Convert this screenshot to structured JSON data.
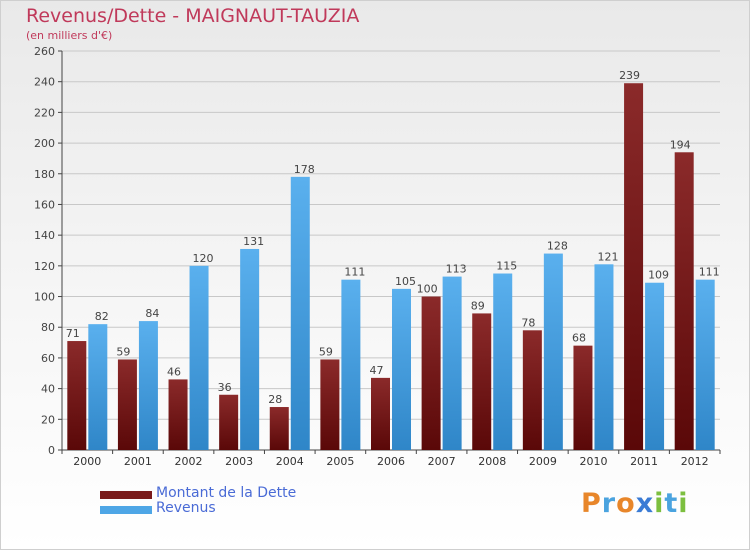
{
  "header": {
    "title": "Revenus/Dette - MAIGNAUT-TAUZIA",
    "subtitle": "(en milliers d'€)"
  },
  "logo": {
    "text": "Proxiti",
    "letters": [
      "P",
      "r",
      "o",
      "x",
      "i",
      "t",
      "i"
    ],
    "colors": [
      "#e8862a",
      "#4aa3df",
      "#e8862a",
      "#3a7bd5",
      "#7cbf3f",
      "#4aa3df",
      "#7cbf3f"
    ]
  },
  "chart_data": {
    "type": "bar",
    "title": "Revenus/Dette - MAIGNAUT-TAUZIA",
    "subtitle": "(en milliers d'€)",
    "categories": [
      "2000",
      "2001",
      "2002",
      "2003",
      "2004",
      "2005",
      "2006",
      "2007",
      "2008",
      "2009",
      "2010",
      "2011",
      "2012"
    ],
    "series": [
      {
        "name": "Montant de la Dette",
        "color": "#7a1a1a",
        "values": [
          71,
          59,
          46,
          36,
          28,
          59,
          47,
          100,
          89,
          78,
          68,
          239,
          194
        ]
      },
      {
        "name": "Revenus",
        "color": "#4ea6e6",
        "values": [
          82,
          84,
          120,
          131,
          178,
          111,
          105,
          113,
          115,
          128,
          121,
          109,
          111
        ]
      }
    ],
    "ylim": [
      0,
      260
    ],
    "yticks": [
      0,
      20,
      40,
      60,
      80,
      100,
      120,
      140,
      160,
      180,
      200,
      220,
      240,
      260
    ],
    "grid": true,
    "legend_position": "bottom-left"
  }
}
